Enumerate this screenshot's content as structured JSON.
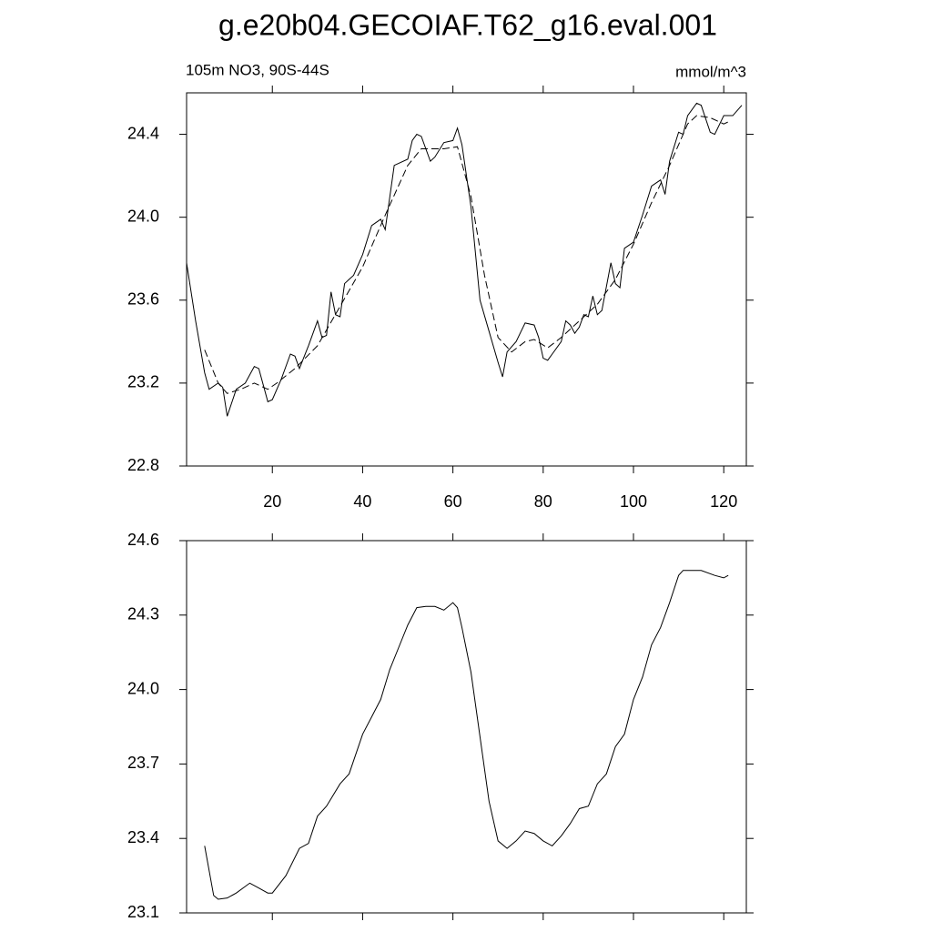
{
  "chart_data": [
    {
      "type": "line",
      "title": "g.e20b04.GECOIAF.T62_g16.eval.001",
      "left_label": "105m NO3, 90S-44S",
      "right_label": "mmol/m^3",
      "xlim": [
        1,
        125
      ],
      "xticks": [
        20,
        40,
        60,
        80,
        100,
        120
      ],
      "x_tick_labels": true,
      "ylim": [
        22.8,
        24.6
      ],
      "yticks": [
        22.8,
        23.2,
        23.6,
        {
          "value": 24,
          "label": "24.0"
        },
        24.4
      ],
      "series": [
        {
          "color": "#000000",
          "dash": false,
          "x": [
            1,
            3,
            5,
            6,
            8,
            9,
            10,
            12,
            14,
            16,
            17,
            19,
            20,
            22,
            24,
            25,
            26,
            28,
            30,
            31,
            32,
            33,
            34,
            35,
            36,
            38,
            40,
            42,
            44,
            45,
            47,
            48,
            50,
            51,
            52,
            53,
            55,
            56,
            58,
            60,
            61,
            62,
            64,
            66,
            68,
            70,
            71,
            72,
            74,
            76,
            78,
            79,
            80,
            81,
            82,
            84,
            85,
            86,
            87,
            88,
            89,
            90,
            91,
            92,
            93,
            95,
            96,
            97,
            98,
            100,
            102,
            104,
            106,
            107,
            108,
            110,
            111,
            112,
            114,
            115,
            117,
            118,
            120,
            122,
            124
          ],
          "values": [
            23.78,
            23.5,
            23.25,
            23.17,
            23.2,
            23.18,
            23.04,
            23.17,
            23.2,
            23.28,
            23.27,
            23.11,
            23.12,
            23.22,
            23.34,
            23.33,
            23.27,
            23.38,
            23.5,
            23.42,
            23.43,
            23.64,
            23.53,
            23.52,
            23.68,
            23.72,
            23.82,
            23.96,
            23.99,
            23.94,
            24.25,
            24.26,
            24.28,
            24.37,
            24.4,
            24.39,
            24.27,
            24.29,
            24.36,
            24.37,
            24.43,
            24.35,
            24.05,
            23.6,
            23.45,
            23.3,
            23.23,
            23.35,
            23.4,
            23.49,
            23.48,
            23.42,
            23.32,
            23.31,
            23.34,
            23.4,
            23.5,
            23.48,
            23.44,
            23.47,
            23.53,
            23.52,
            23.62,
            23.53,
            23.55,
            23.78,
            23.68,
            23.66,
            23.85,
            23.88,
            24.01,
            24.15,
            24.18,
            24.11,
            24.27,
            24.41,
            24.4,
            24.49,
            24.55,
            24.54,
            24.41,
            24.4,
            24.49,
            24.49,
            24.54
          ]
        },
        {
          "color": "#000000",
          "dash": true,
          "x": [
            5,
            8,
            10,
            13,
            16,
            19,
            21,
            25,
            30,
            35,
            40,
            45,
            50,
            53,
            58,
            61,
            64,
            67,
            70,
            73,
            76,
            78,
            81,
            84,
            88,
            92,
            96,
            100,
            104,
            108,
            112,
            114,
            117,
            120,
            121
          ],
          "values": [
            23.36,
            23.2,
            23.15,
            23.17,
            23.2,
            23.17,
            23.2,
            23.27,
            23.38,
            23.57,
            23.76,
            24.01,
            24.25,
            24.33,
            24.33,
            24.34,
            24.1,
            23.72,
            23.42,
            23.35,
            23.4,
            23.41,
            23.37,
            23.42,
            23.5,
            23.58,
            23.7,
            23.87,
            24.07,
            24.25,
            24.45,
            24.49,
            24.48,
            24.45,
            24.46
          ]
        }
      ]
    },
    {
      "type": "line",
      "xlim": [
        1,
        125
      ],
      "xticks": [
        20,
        40,
        60,
        80,
        100,
        120
      ],
      "x_tick_labels": false,
      "ylim": [
        23.1,
        24.6
      ],
      "yticks": [
        23.1,
        23.4,
        23.7,
        {
          "value": 24,
          "label": "24.0"
        },
        24.3,
        24.6
      ],
      "series": [
        {
          "color": "#000000",
          "dash": false,
          "x": [
            5,
            7,
            8,
            10,
            12,
            15,
            17,
            19,
            20,
            23,
            26,
            28,
            30,
            32,
            35,
            37,
            40,
            42,
            44,
            46,
            48,
            50,
            52,
            54,
            56,
            58,
            60,
            61,
            62,
            64,
            66,
            68,
            70,
            72,
            74,
            76,
            78,
            80,
            82,
            84,
            86,
            88,
            90,
            92,
            94,
            96,
            98,
            100,
            102,
            104,
            106,
            108,
            110,
            111,
            113,
            115,
            118,
            120,
            121
          ],
          "values": [
            23.37,
            23.17,
            23.155,
            23.16,
            23.18,
            23.22,
            23.2,
            23.18,
            23.18,
            23.25,
            23.36,
            23.38,
            23.49,
            23.53,
            23.62,
            23.66,
            23.82,
            23.89,
            23.96,
            24.08,
            24.17,
            24.26,
            24.33,
            24.335,
            24.335,
            24.32,
            24.35,
            24.33,
            24.25,
            24.07,
            23.81,
            23.55,
            23.39,
            23.36,
            23.39,
            23.43,
            23.42,
            23.39,
            23.37,
            23.41,
            23.46,
            23.52,
            23.53,
            23.62,
            23.66,
            23.77,
            23.82,
            23.96,
            24.05,
            24.18,
            24.25,
            24.35,
            24.46,
            24.48,
            24.48,
            24.48,
            24.46,
            24.45,
            24.46
          ]
        }
      ]
    }
  ]
}
